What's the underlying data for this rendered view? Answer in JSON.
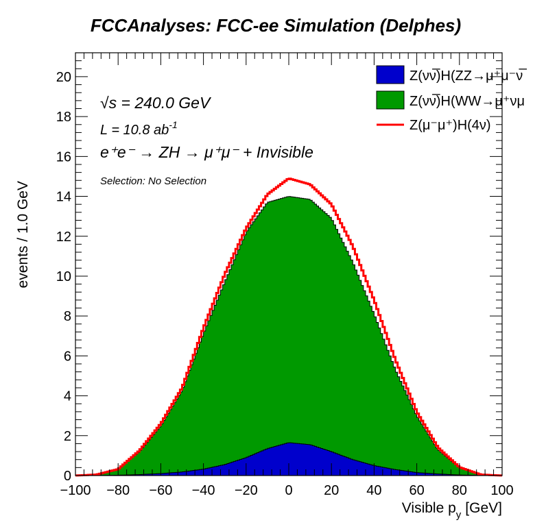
{
  "chart_data": {
    "type": "area",
    "title": "FCCAnalyses: FCC-ee Simulation (Delphes)",
    "xlabel": "Visible p_y [GeV]",
    "xlabel_main": "Visible p",
    "xlabel_sub": "y",
    "xlabel_unit": "[GeV]",
    "ylabel": "events / 1.0 GeV",
    "xlim": [
      -100,
      100
    ],
    "ylim": [
      0,
      21.2
    ],
    "x_ticks": [
      "−100",
      "−80",
      "−60",
      "−40",
      "−20",
      "0",
      "20",
      "40",
      "60",
      "80",
      "100"
    ],
    "y_ticks": [
      "0",
      "2",
      "4",
      "6",
      "8",
      "10",
      "12",
      "14",
      "16",
      "18",
      "20"
    ],
    "stacked": true,
    "series": [
      {
        "name": "Z(νν̅)H(ZZ→μ⁺μ⁻νν̅)",
        "style": "filled",
        "color": "#0000cc",
        "x": [
          -100,
          -90,
          -80,
          -70,
          -60,
          -50,
          -40,
          -30,
          -20,
          -10,
          0,
          10,
          20,
          30,
          40,
          50,
          60,
          70,
          80,
          90,
          100
        ],
        "y": [
          0,
          0,
          0.02,
          0.05,
          0.1,
          0.18,
          0.32,
          0.55,
          0.9,
          1.35,
          1.65,
          1.55,
          1.2,
          0.8,
          0.5,
          0.3,
          0.15,
          0.08,
          0.03,
          0.01,
          0
        ]
      },
      {
        "name": "Z(νν̅)H(WW→μ⁺νμ⁻ν̅)",
        "style": "filled",
        "color": "#009900",
        "x": [
          -100,
          -90,
          -80,
          -70,
          -60,
          -50,
          -40,
          -30,
          -20,
          -10,
          0,
          10,
          20,
          30,
          40,
          50,
          60,
          70,
          80,
          90,
          100
        ],
        "y": [
          0,
          0.05,
          0.3,
          1.15,
          2.4,
          4.1,
          6.8,
          9.15,
          11.3,
          12.35,
          12.35,
          12.3,
          11.7,
          9.9,
          7.6,
          5.0,
          2.85,
          1.22,
          0.37,
          0.04,
          0
        ]
      },
      {
        "name": "Z(μ⁻μ⁺)H(4ν)",
        "style": "line",
        "color": "#ff0000",
        "x": [
          -100,
          -90,
          -80,
          -70,
          -60,
          -50,
          -40,
          -30,
          -20,
          -10,
          0,
          10,
          20,
          30,
          40,
          50,
          60,
          70,
          80,
          90,
          100
        ],
        "y": [
          0,
          0.05,
          0.32,
          1.25,
          2.6,
          4.4,
          7.4,
          10.1,
          12.4,
          14.1,
          14.9,
          14.6,
          13.6,
          11.5,
          8.8,
          5.8,
          3.2,
          1.4,
          0.42,
          0.05,
          0
        ]
      }
    ],
    "legend_placement": "top-right",
    "legend": [
      {
        "label_main": "Z(νν̅)H(ZZ→μ⁺μ⁻ν̅",
        "color": "#0000cc",
        "kind": "box"
      },
      {
        "label_main": "Z(νν̅)H(WW→μ⁺νμ",
        "color": "#009900",
        "kind": "box"
      },
      {
        "label_main": "Z(μ⁻μ⁺)H(4ν)",
        "color": "#ff0000",
        "kind": "line"
      }
    ],
    "annotations": {
      "sqrt_s": "√s = 240.0 GeV",
      "lumi_main": "L = 10.8 ab",
      "lumi_sup": "-1",
      "process": "e⁺e⁻ → ZH → μ⁺μ⁻ + Invisible",
      "selection": "Selection: No Selection"
    },
    "grid": false
  }
}
